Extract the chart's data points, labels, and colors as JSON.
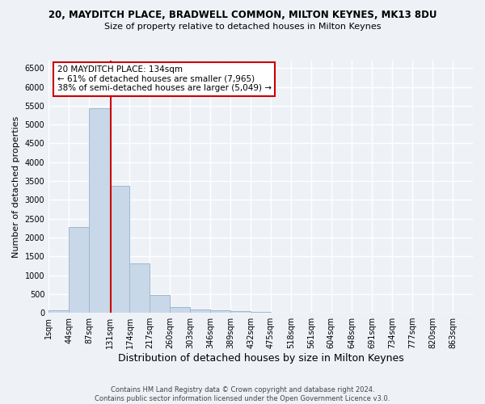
{
  "title_line1": "20, MAYDITCH PLACE, BRADWELL COMMON, MILTON KEYNES, MK13 8DU",
  "title_line2": "Size of property relative to detached houses in Milton Keynes",
  "xlabel": "Distribution of detached houses by size in Milton Keynes",
  "ylabel": "Number of detached properties",
  "footer_line1": "Contains HM Land Registry data © Crown copyright and database right 2024.",
  "footer_line2": "Contains public sector information licensed under the Open Government Licence v3.0.",
  "annotation_title": "20 MAYDITCH PLACE: 134sqm",
  "annotation_line1": "← 61% of detached houses are smaller (7,965)",
  "annotation_line2": "38% of semi-detached houses are larger (5,049) →",
  "bar_color": "#c8d8e8",
  "bar_edgecolor": "#a0b8d0",
  "vline_color": "#cc0000",
  "vline_x": 134,
  "categories": [
    "1sqm",
    "44sqm",
    "87sqm",
    "131sqm",
    "174sqm",
    "217sqm",
    "260sqm",
    "303sqm",
    "346sqm",
    "389sqm",
    "432sqm",
    "475sqm",
    "518sqm",
    "561sqm",
    "604sqm",
    "648sqm",
    "691sqm",
    "734sqm",
    "777sqm",
    "820sqm",
    "863sqm"
  ],
  "bin_edges": [
    1,
    44,
    87,
    131,
    174,
    217,
    260,
    303,
    346,
    389,
    432,
    475,
    518,
    561,
    604,
    648,
    691,
    734,
    777,
    820,
    863,
    906
  ],
  "bar_heights": [
    75,
    2280,
    5430,
    3380,
    1310,
    480,
    160,
    85,
    65,
    35,
    20,
    10,
    8,
    5,
    3,
    2,
    1,
    1,
    0,
    0,
    0
  ],
  "ylim": [
    0,
    6700
  ],
  "yticks": [
    0,
    500,
    1000,
    1500,
    2000,
    2500,
    3000,
    3500,
    4000,
    4500,
    5000,
    5500,
    6000,
    6500
  ],
  "annotation_box_color": "white",
  "annotation_box_edgecolor": "#cc0000",
  "bg_color": "#eef2f7",
  "grid_color": "white"
}
